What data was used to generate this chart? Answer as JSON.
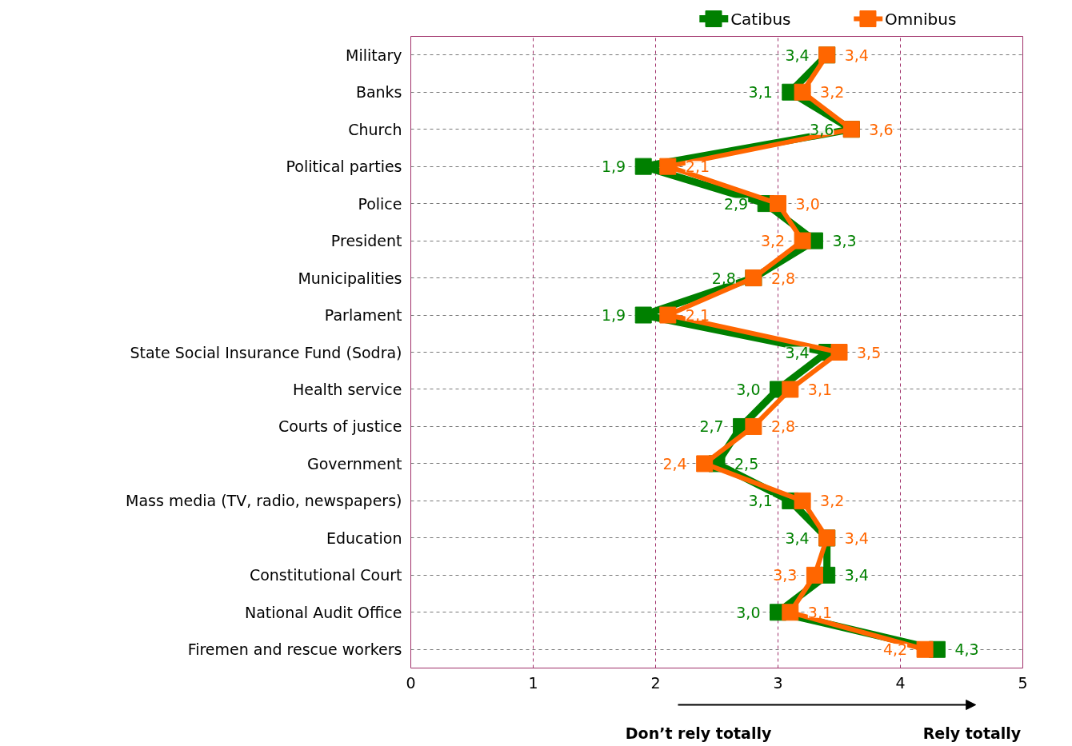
{
  "chart_data": {
    "type": "line",
    "categories": [
      "Military",
      "Banks",
      "Church",
      "Political parties",
      "Police",
      "President",
      "Municipalities",
      "Parlament",
      "State Social Insurance Fund (Sodra)",
      "Health service",
      "Courts of justice",
      "Government",
      "Mass media (TV, radio, newspapers)",
      "Education",
      "Constitutional Court",
      "National Audit Office",
      "Firemen and rescue workers"
    ],
    "orientation": "horizontal",
    "series": [
      {
        "name": "Catibus",
        "color": "#008000",
        "values": [
          3.4,
          3.1,
          3.6,
          1.9,
          2.9,
          3.3,
          2.8,
          1.9,
          3.4,
          3.0,
          2.7,
          2.5,
          3.1,
          3.4,
          3.4,
          3.0,
          4.3
        ],
        "value_labels": [
          "3,4",
          "3,1",
          "3,6",
          "1,9",
          "2,9",
          "3,3",
          "2,8",
          "1,9",
          "3,4",
          "3,0",
          "2,7",
          "2,5",
          "3,1",
          "3,4",
          "3,4",
          "3,0",
          "4,3"
        ]
      },
      {
        "name": "Omnibus",
        "color": "#ff6600",
        "values": [
          3.4,
          3.2,
          3.6,
          2.1,
          3.0,
          3.2,
          2.8,
          2.1,
          3.5,
          3.1,
          2.8,
          2.4,
          3.2,
          3.4,
          3.3,
          3.1,
          4.2
        ],
        "value_labels": [
          "3,4",
          "3,2",
          "3,6",
          "2,1",
          "3,0",
          "3,2",
          "2,8",
          "2,1",
          "3,5",
          "3,1",
          "2,8",
          "2,4",
          "3,2",
          "3,4",
          "3,3",
          "3,1",
          "4,2"
        ]
      }
    ],
    "xlim": [
      0,
      5
    ],
    "xticks": [
      0,
      1,
      2,
      3,
      4,
      5
    ],
    "annotations": [
      "Don’t rely totally",
      "Rely totally"
    ],
    "grid": true,
    "legend": "top",
    "marker": "square",
    "line_style": "solid"
  }
}
